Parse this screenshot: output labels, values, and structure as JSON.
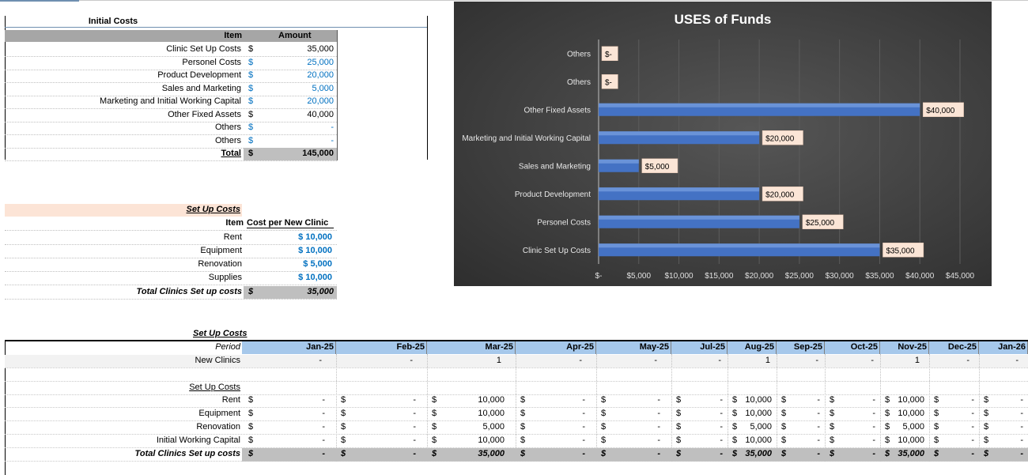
{
  "initial_costs": {
    "title": "Initial Costs",
    "col_item": "Item",
    "col_amount": "Amount",
    "currency": "$",
    "rows": [
      {
        "label": "Clinic Set Up Costs",
        "value": "35,000",
        "blue": false
      },
      {
        "label": "Personel Costs",
        "value": "25,000",
        "blue": true
      },
      {
        "label": "Product Development",
        "value": "20,000",
        "blue": true
      },
      {
        "label": "Sales and Marketing",
        "value": "5,000",
        "blue": true
      },
      {
        "label": "Marketing and Initial Working Capital",
        "value": "20,000",
        "blue": true
      },
      {
        "label": "Other Fixed Assets",
        "value": "40,000",
        "blue": false
      },
      {
        "label": "Others",
        "value": "-",
        "blue": true
      },
      {
        "label": "Others",
        "value": "-",
        "blue": true
      }
    ],
    "total_label": "Total",
    "total_value": "145,000"
  },
  "setup_costs": {
    "title": "Set Up Costs",
    "col_item": "Item",
    "col_cost": "Cost per New Clinic",
    "rows": [
      {
        "label": "Rent",
        "value": "$ 10,000"
      },
      {
        "label": "Equipment",
        "value": "$ 10,000"
      },
      {
        "label": "Renovation",
        "value": "$ 5,000"
      },
      {
        "label": "Supplies",
        "value": "$ 10,000"
      }
    ],
    "total_label": "Total Clinics Set up costs",
    "total_currency": "$",
    "total_value": "35,000"
  },
  "schedule": {
    "title": "Set Up Costs",
    "period_label": "Period",
    "periods": [
      "Jan-25",
      "Feb-25",
      "Mar-25",
      "Apr-25",
      "May-25",
      "Jul-25",
      "Aug-25",
      "Sep-25",
      "Oct-25",
      "Nov-25",
      "Dec-25",
      "Jan-26"
    ],
    "new_clinics_label": "New Clinics",
    "new_clinics": [
      "-",
      "-",
      "1",
      "-",
      "-",
      "-",
      "1",
      "-",
      "-",
      "1",
      "-",
      "-"
    ],
    "subheader": "Set Up Costs",
    "currency": "$",
    "rows": [
      {
        "label": "Rent",
        "values": [
          "-",
          "-",
          "10,000",
          "-",
          "-",
          "-",
          "10,000",
          "-",
          "-",
          "10,000",
          "-",
          "-"
        ]
      },
      {
        "label": "Equipment",
        "values": [
          "-",
          "-",
          "10,000",
          "-",
          "-",
          "-",
          "10,000",
          "-",
          "-",
          "10,000",
          "-",
          "-"
        ]
      },
      {
        "label": "Renovation",
        "values": [
          "-",
          "-",
          "5,000",
          "-",
          "-",
          "-",
          "5,000",
          "-",
          "-",
          "5,000",
          "-",
          "-"
        ]
      },
      {
        "label": "Initial Working Capital",
        "values": [
          "-",
          "-",
          "10,000",
          "-",
          "-",
          "-",
          "10,000",
          "-",
          "-",
          "10,000",
          "-",
          "-"
        ]
      }
    ],
    "total_label": "Total Clinics Set up costs",
    "total_values": [
      "-",
      "-",
      "35,000",
      "-",
      "-",
      "-",
      "35,000",
      "-",
      "-",
      "35,000",
      "-",
      "-"
    ]
  },
  "chart_data": {
    "type": "bar",
    "orientation": "horizontal",
    "title": "USES of Funds",
    "categories": [
      "Clinic Set Up Costs",
      "Personel Costs",
      "Product Development",
      "Sales and Marketing",
      "Marketing and Initial Working Capital",
      "Other Fixed Assets",
      "Others",
      "Others"
    ],
    "values": [
      35000,
      25000,
      20000,
      5000,
      20000,
      40000,
      0,
      0
    ],
    "data_labels": [
      "$35,000",
      "$25,000",
      "$20,000",
      "$5,000",
      "$20,000",
      "$40,000",
      "$-",
      "$-"
    ],
    "x_ticks": [
      "$-",
      "$5,000",
      "$10,000",
      "$15,000",
      "$20,000",
      "$25,000",
      "$30,000",
      "$35,000",
      "$40,000",
      "$45,000"
    ],
    "xlim": [
      0,
      45000
    ],
    "grid": true,
    "legend": "none",
    "colors": {
      "bar": "#4472c4",
      "label_bg": "#fbe5d6",
      "background": "#404040"
    }
  }
}
